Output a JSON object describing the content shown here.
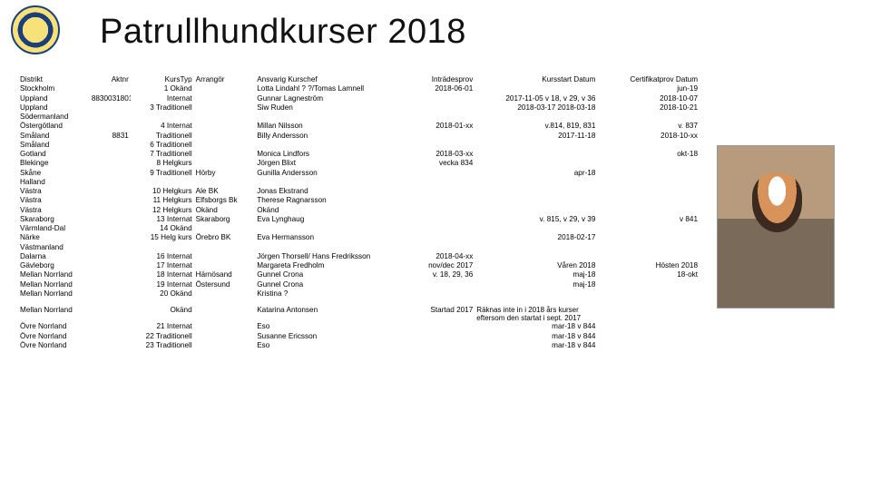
{
  "title": "Patrullhundkurser 2018",
  "columns": [
    "Distrikt",
    "Aktnr",
    "KursTyp",
    "Arrangör",
    "Ansvarig Kurschef",
    "Inträdesprov",
    "Kursstart Datum",
    "Certifikatprov Datum"
  ],
  "note": "Räknas inte in i 2018 års kurser eftersom den startat i sept. 2017",
  "rows": [
    {
      "d": "Stockholm",
      "a": "",
      "k": "1 Okänd",
      "arr": "",
      "ans": "Lotta Lindahl ? ?/Tomas Lamnell",
      "i": "2018-06-01",
      "ks": "",
      "c": "jun-19"
    },
    {
      "d": "Uppland",
      "a": "8830031801",
      "k": "Internat",
      "arr": "",
      "ans": "Gunnar Lagneström",
      "i": "",
      "ks": "2017-11-05 v 18, v 29, v 36",
      "c": "2018-10-07"
    },
    {
      "d": "Uppland",
      "a": "",
      "k": "3 Traditionell",
      "arr": "",
      "ans": "Siw Ruden",
      "i": "",
      "ks": "2018-03-17          2018-03-18",
      "c": "2018-10-21"
    },
    {
      "d": "Södermanland",
      "a": "",
      "k": "",
      "arr": "",
      "ans": "",
      "i": "",
      "ks": "",
      "c": ""
    },
    {
      "d": "Östergötland",
      "a": "",
      "k": "4 Internat",
      "arr": "",
      "ans": "Millan Nilsson",
      "i": "2018-01-xx",
      "ks": "v.814, 819, 831",
      "c": "v. 837"
    },
    {
      "d": "Småland",
      "a": "8831",
      "k": "Traditionell",
      "arr": "",
      "ans": "Billy Andersson",
      "i": "",
      "ks": "2017-11-18",
      "c": "2018-10-xx"
    },
    {
      "d": "Småland",
      "a": "",
      "k": "6 Traditionell",
      "arr": "",
      "ans": "",
      "i": "",
      "ks": "",
      "c": ""
    },
    {
      "d": "Gotland",
      "a": "",
      "k": "7 Traditionell",
      "arr": "",
      "ans": "Monica Lindfors",
      "i": "2018-03-xx",
      "ks": "",
      "c": "okt-18"
    },
    {
      "d": "Blekinge",
      "a": "",
      "k": "8 Helgkurs",
      "arr": "",
      "ans": "Jörgen Blixt",
      "i": "vecka 834",
      "ks": "",
      "c": ""
    },
    {
      "d": "Skåne",
      "a": "",
      "k": "9 Traditionell",
      "arr": "Hörby",
      "ans": "Gunilla Andersson",
      "i": "",
      "ks": "apr-18",
      "c": ""
    },
    {
      "d": "Halland",
      "a": "",
      "k": "",
      "arr": "",
      "ans": "",
      "i": "",
      "ks": "",
      "c": ""
    },
    {
      "d": "Västra",
      "a": "",
      "k": "10 Helgkurs",
      "arr": "Ale BK",
      "ans": "Jonas Ekstrand",
      "i": "",
      "ks": "",
      "c": ""
    },
    {
      "d": "Västra",
      "a": "",
      "k": "11 Helgkurs",
      "arr": "Elfsborgs Bk",
      "ans": "Therese Ragnarsson",
      "i": "",
      "ks": "",
      "c": ""
    },
    {
      "d": "Västra",
      "a": "",
      "k": "12 Helgkurs",
      "arr": "Okänd",
      "ans": "Okänd",
      "i": "",
      "ks": "",
      "c": ""
    },
    {
      "d": "Skaraborg",
      "a": "",
      "k": "13 Internat",
      "arr": "Skaraborg",
      "ans": "Eva Lynghaug",
      "i": "",
      "ks": "v. 815, v 29, v 39",
      "c": "v 841"
    },
    {
      "d": "Värmland-Dal",
      "a": "",
      "k": "14 Okänd",
      "arr": "",
      "ans": "",
      "i": "",
      "ks": "",
      "c": ""
    },
    {
      "d": "Närke",
      "a": "",
      "k": "15 Helg kurs",
      "arr": "Örebro BK",
      "ans": "Eva Hermansson",
      "i": "",
      "ks": "2018-02-17",
      "c": ""
    },
    {
      "d": "Västmanland",
      "a": "",
      "k": "",
      "arr": "",
      "ans": "",
      "i": "",
      "ks": "",
      "c": ""
    },
    {
      "d": "Dalarna",
      "a": "",
      "k": "16 Internat",
      "arr": "",
      "ans": "Jörgen Thorsell/ Hans Fredriksson",
      "i": "2018-04-xx",
      "ks": "",
      "c": ""
    },
    {
      "d": "Gävleborg",
      "a": "",
      "k": "17 Internat",
      "arr": "",
      "ans": "Margareta Fredholm",
      "i": "nov/dec 2017",
      "ks": "Våren 2018",
      "c": "Hösten 2018"
    },
    {
      "d": "Mellan Norrland",
      "a": "",
      "k": "18 Internat",
      "arr": "Härnösand",
      "ans": "Gunnel Crona",
      "i": "v. 18, 29, 36",
      "ks": "maj-18",
      "c": "18-okt"
    },
    {
      "d": "Mellan Norrland",
      "a": "",
      "k": "19 Internat",
      "arr": "Östersund",
      "ans": "Gunnel Crona",
      "i": "",
      "ks": "maj-18",
      "c": ""
    },
    {
      "d": "Mellan Norrland",
      "a": "",
      "k": "20 Okänd",
      "arr": "",
      "ans": "Kristina ?",
      "i": "",
      "ks": "",
      "c": ""
    },
    {
      "gap": true
    },
    {
      "d": "Mellan Norrland",
      "a": "",
      "k": "Okänd",
      "arr": "",
      "ans": "Katarina Antonsen",
      "i": "Startad 2017",
      "ks": "__NOTE__",
      "c": ""
    },
    {
      "d": "Övre Norrland",
      "a": "",
      "k": "21 Internat",
      "arr": "",
      "ans": "Eso",
      "i": "",
      "ks": "mar-18 v 844",
      "c": ""
    },
    {
      "d": "Övre Norrland",
      "a": "",
      "k": "22 Traditionell",
      "arr": "",
      "ans": "Susanne Ericsson",
      "i": "",
      "ks": "mar-18 v 844",
      "c": ""
    },
    {
      "d": "Övre Norrland",
      "a": "",
      "k": "23 Traditionell",
      "arr": "",
      "ans": "Eso",
      "i": "",
      "ks": "mar-18 v 844",
      "c": ""
    }
  ],
  "style": {
    "page_bg": "#ffffff",
    "text_color": "#000000",
    "title_fontsize": 38,
    "body_fontsize": 8.2,
    "logo_colors": {
      "outer": "#f7e27a",
      "ring": "#1c3f7c"
    }
  }
}
